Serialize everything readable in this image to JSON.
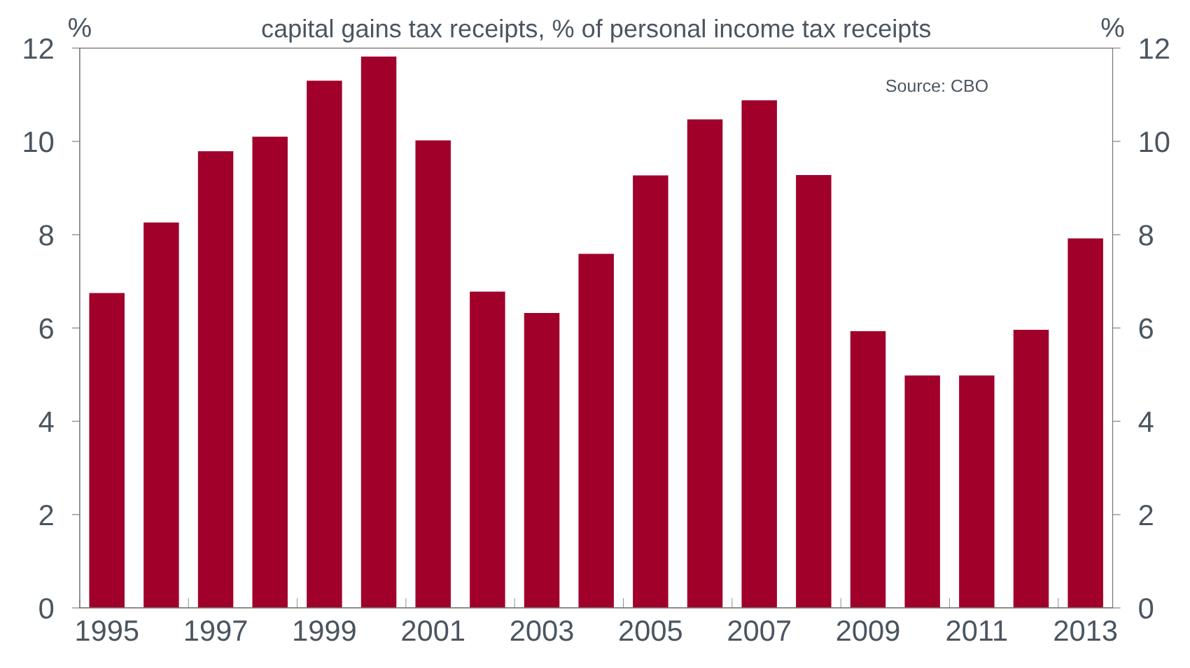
{
  "chart_data": {
    "type": "bar",
    "title": "capital gains tax receipts, % of personal income tax receipts",
    "ylabel": "%",
    "y2label": "%",
    "categories": [
      "1995",
      null,
      "1997",
      null,
      "1999",
      null,
      "2001",
      null,
      "2003",
      null,
      "2005",
      null,
      "2007",
      null,
      "2009",
      null,
      "2011",
      null,
      "2013"
    ],
    "values": [
      6.75,
      8.26,
      9.79,
      10.1,
      11.3,
      11.82,
      10.02,
      6.78,
      6.32,
      7.59,
      9.27,
      10.47,
      10.88,
      9.28,
      5.93,
      4.98,
      4.98,
      5.96,
      7.92
    ],
    "color": "#a0002a",
    "ylim": [
      0,
      12
    ],
    "yticks": [
      0,
      2,
      4,
      6,
      8,
      10,
      12
    ],
    "y2lim": [
      0,
      12
    ],
    "y2ticks": [
      0,
      2,
      4,
      6,
      8,
      10,
      12
    ],
    "annotations": [
      "Source: CBO"
    ],
    "grid": false,
    "legend": false
  }
}
